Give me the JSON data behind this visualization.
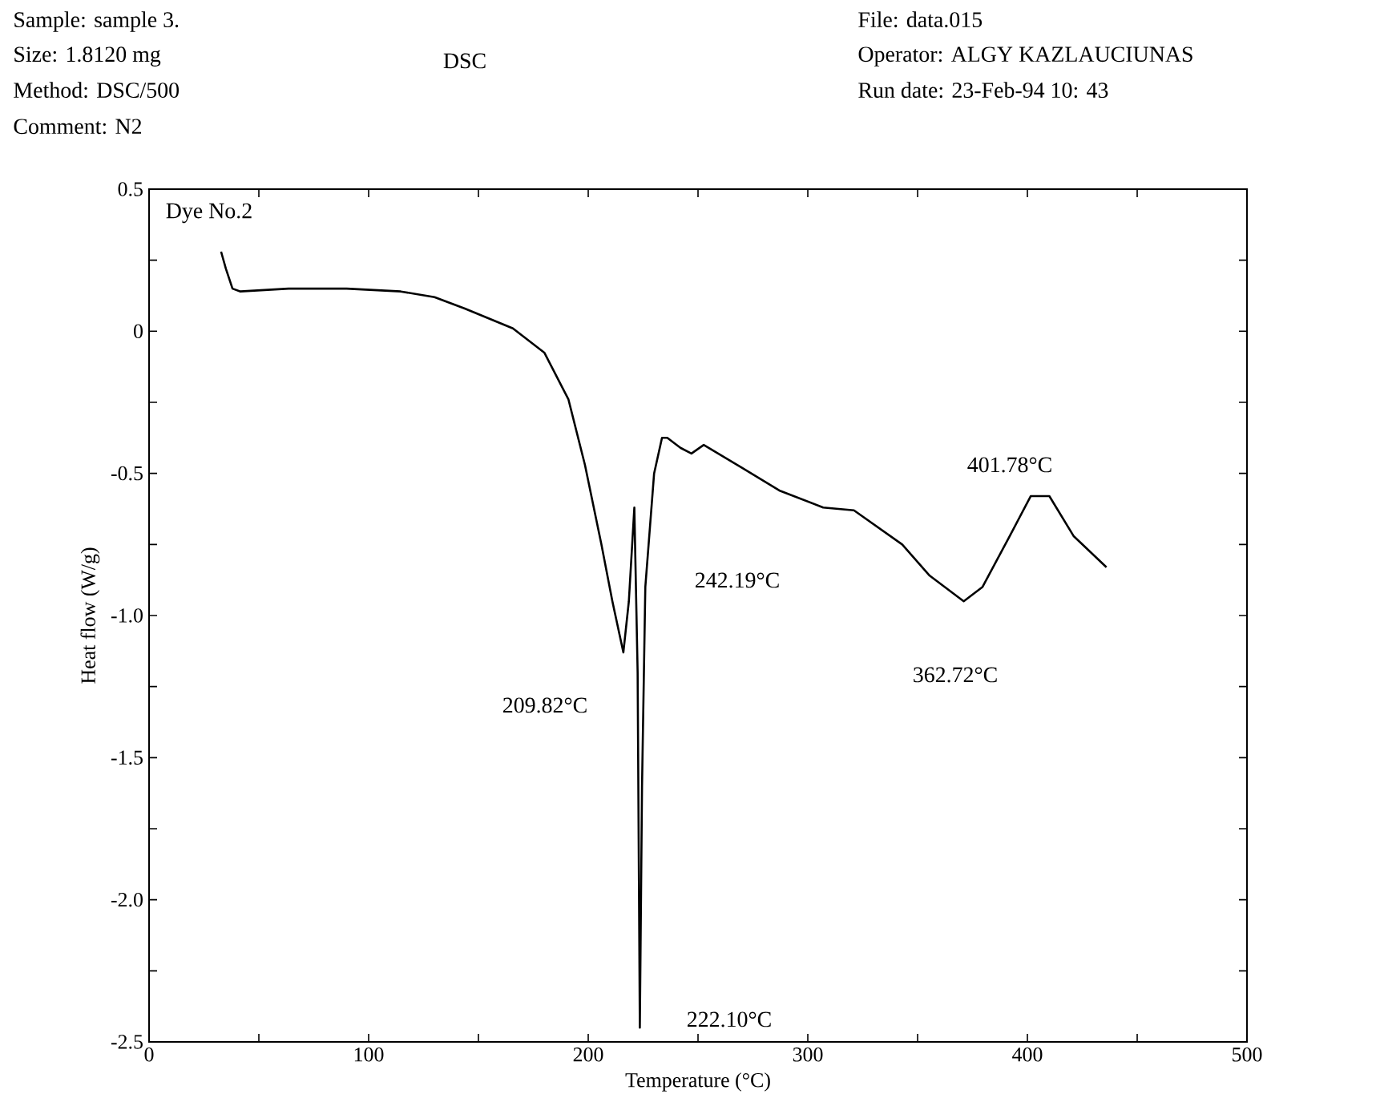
{
  "chart_data": {
    "type": "line",
    "title": "DSC",
    "xlabel": "Temperature (°C)",
    "ylabel": "Heat flow (W/g)",
    "x": [
      32.8,
      35,
      38,
      41.6,
      63.5,
      90,
      114.6,
      130,
      143.8,
      165.7,
      180,
      191,
      198.5,
      206,
      211,
      216,
      218.5,
      221,
      222.5,
      223.5,
      224.5,
      226,
      230,
      233.6,
      236,
      242,
      247,
      252.6,
      270,
      287,
      307,
      321,
      343,
      355.5,
      371,
      379.5,
      392,
      401.5,
      410,
      421,
      436
    ],
    "series": [
      {
        "color": "#000000",
        "values": [
          0.28,
          0.22,
          0.15,
          0.14,
          0.15,
          0.15,
          0.14,
          0.12,
          0.08,
          0.01,
          -0.075,
          -0.24,
          -0.47,
          -0.75,
          -0.95,
          -1.13,
          -0.95,
          -0.62,
          -1.2,
          -2.45,
          -1.6,
          -0.9,
          -0.5,
          -0.375,
          -0.375,
          -0.41,
          -0.43,
          -0.4,
          -0.48,
          -0.56,
          -0.62,
          -0.63,
          -0.75,
          -0.86,
          -0.95,
          -0.9,
          -0.72,
          -0.58,
          -0.58,
          -0.72,
          -0.83
        ]
      }
    ],
    "xlim": [
      0,
      500
    ],
    "ylim": [
      -2.5,
      0.5
    ],
    "xticks": [
      0,
      {
        "value": 50,
        "label": null
      },
      100,
      {
        "value": 150,
        "label": null
      },
      200,
      {
        "value": 250,
        "label": null
      },
      300,
      {
        "value": 350,
        "label": null
      },
      400,
      {
        "value": 450,
        "label": null
      },
      500
    ],
    "yticks": [
      {
        "value": -2.5,
        "label": "-2.5"
      },
      {
        "value": -2.25,
        "label": null
      },
      {
        "value": -2,
        "label": "-2.0"
      },
      {
        "value": -1.75,
        "label": null
      },
      {
        "value": -1.5,
        "label": "-1.5"
      },
      {
        "value": -1.25,
        "label": null
      },
      {
        "value": -1,
        "label": "-1.0"
      },
      {
        "value": -0.75,
        "label": null
      },
      -0.5,
      {
        "value": -0.25,
        "label": null
      },
      0,
      {
        "value": 0.25,
        "label": null
      },
      0.5
    ],
    "grid": false,
    "marker": "none",
    "line_style": "solid",
    "annotations": [
      "Sample: sample 3.",
      "Size: 1.8120 mg",
      "Method: DSC/500",
      "Comment: N2",
      "File: data.015",
      "Operator: ALGY KAZLAUCIUNAS",
      "Run date: 23-Feb-94 10: 43",
      "Dye No.2",
      "209.82°C",
      "222.10°C",
      "242.19°C",
      "362.72°C",
      "401.78°C"
    ]
  }
}
